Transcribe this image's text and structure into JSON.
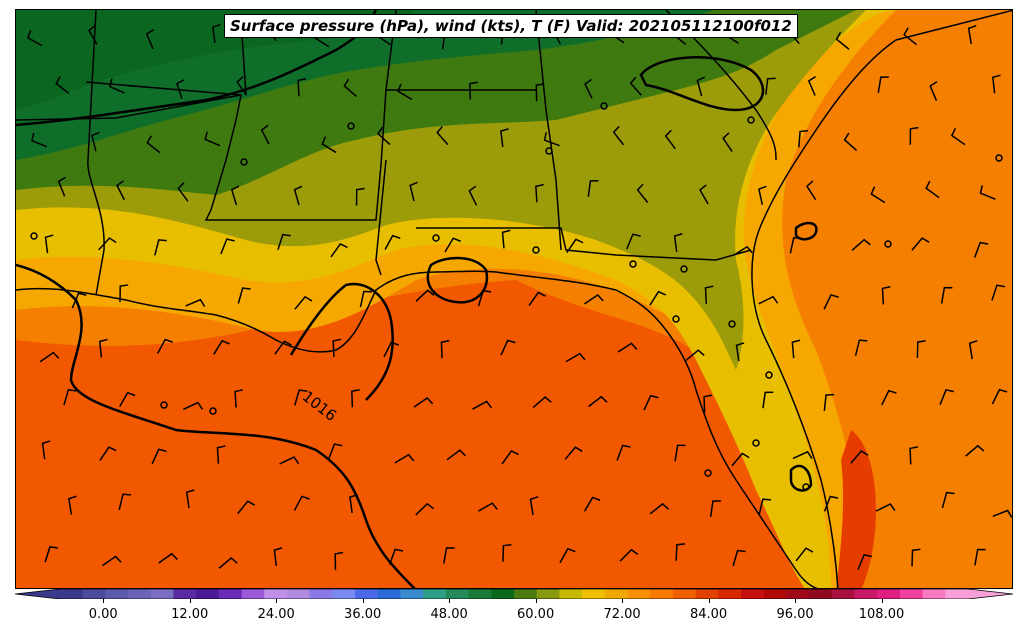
{
  "title": "Surface pressure (hPa), wind (kts), T (F) Valid: 202105112100f012",
  "isobar_label": "1016",
  "colorbar": {
    "min": -6,
    "max": 120,
    "step": 3,
    "colors": [
      "#3a3a8c",
      "#4b4b9e",
      "#5a5aa8",
      "#6b63b3",
      "#7a6ec0",
      "#5a2aa0",
      "#4b1a96",
      "#6b2ab8",
      "#9a5ad8",
      "#c090e8",
      "#b08ae0",
      "#8a7ae8",
      "#7a8af0",
      "#4a6ae8",
      "#2a6ad8",
      "#3a8ad0",
      "#2e9e88",
      "#248a5a",
      "#1a7a3a",
      "#0a6a1a",
      "#4a7a10",
      "#8a9a10",
      "#c8b800",
      "#f0c000",
      "#f0a800",
      "#f89000",
      "#f87a00",
      "#f06000",
      "#e04000",
      "#d82800",
      "#c81010",
      "#b00808",
      "#a00818",
      "#900820",
      "#a81040",
      "#c81868",
      "#e02080",
      "#f040a0",
      "#f87ac0",
      "#f8a0d8"
    ],
    "ticks": [
      "0.00",
      "12.00",
      "24.00",
      "36.00",
      "48.00",
      "60.00",
      "72.00",
      "84.00",
      "96.00",
      "108.00"
    ],
    "tick_values": [
      0,
      12,
      24,
      36,
      48,
      60,
      72,
      84,
      96,
      108
    ]
  },
  "colors": {
    "border": "#000000",
    "cold_green": "#0f6e2a",
    "green": "#3f7a10",
    "olive": "#9c9c0a",
    "yellow": "#e8be00",
    "orange_light": "#f6a800",
    "orange": "#f57f00",
    "orange_dark": "#f25800",
    "red_orange": "#e63c00"
  }
}
